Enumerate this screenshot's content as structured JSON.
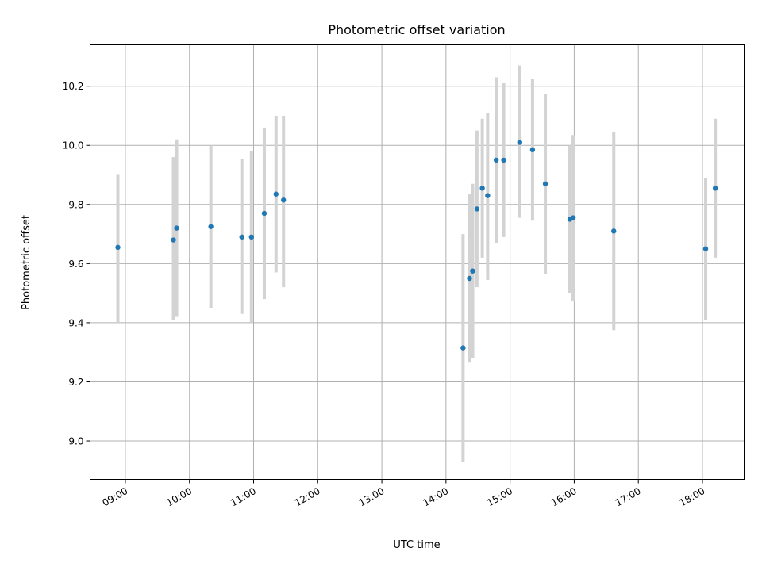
{
  "chart_data": {
    "type": "scatter",
    "title": "Photometric offset variation",
    "xlabel": "UTC time",
    "ylabel": "Photometric offset",
    "xlim": [
      "08:27",
      "18:39"
    ],
    "ylim": [
      8.87,
      10.34
    ],
    "grid": true,
    "x_ticks": [
      "09:00",
      "10:00",
      "11:00",
      "12:00",
      "13:00",
      "14:00",
      "15:00",
      "16:00",
      "17:00",
      "18:00"
    ],
    "y_ticks": [
      "9.0",
      "9.2",
      "9.4",
      "9.6",
      "9.8",
      "10.0",
      "10.2"
    ],
    "colors": {
      "point": "#1f77b4",
      "errorbar": "#d3d3d3"
    },
    "points": [
      {
        "x": "08:53",
        "y": 9.655,
        "ylow": 9.4,
        "yhigh": 9.9
      },
      {
        "x": "09:45",
        "y": 9.68,
        "ylow": 9.41,
        "yhigh": 9.96
      },
      {
        "x": "09:48",
        "y": 9.72,
        "ylow": 9.42,
        "yhigh": 10.02
      },
      {
        "x": "10:20",
        "y": 9.725,
        "ylow": 9.45,
        "yhigh": 10.0
      },
      {
        "x": "10:49",
        "y": 9.69,
        "ylow": 9.43,
        "yhigh": 9.955
      },
      {
        "x": "10:58",
        "y": 9.69,
        "ylow": 9.4,
        "yhigh": 9.98
      },
      {
        "x": "11:10",
        "y": 9.77,
        "ylow": 9.48,
        "yhigh": 10.06
      },
      {
        "x": "11:21",
        "y": 9.835,
        "ylow": 9.57,
        "yhigh": 10.1
      },
      {
        "x": "11:28",
        "y": 9.815,
        "ylow": 9.52,
        "yhigh": 10.1
      },
      {
        "x": "14:16",
        "y": 9.315,
        "ylow": 8.93,
        "yhigh": 9.7
      },
      {
        "x": "14:22",
        "y": 9.55,
        "ylow": 9.265,
        "yhigh": 9.835
      },
      {
        "x": "14:25",
        "y": 9.575,
        "ylow": 9.28,
        "yhigh": 9.87
      },
      {
        "x": "14:29",
        "y": 9.785,
        "ylow": 9.52,
        "yhigh": 10.05
      },
      {
        "x": "14:34",
        "y": 9.855,
        "ylow": 9.62,
        "yhigh": 10.09
      },
      {
        "x": "14:39",
        "y": 9.83,
        "ylow": 9.545,
        "yhigh": 10.11
      },
      {
        "x": "14:47",
        "y": 9.95,
        "ylow": 9.67,
        "yhigh": 10.23
      },
      {
        "x": "14:54",
        "y": 9.95,
        "ylow": 9.69,
        "yhigh": 10.21
      },
      {
        "x": "15:09",
        "y": 10.01,
        "ylow": 9.755,
        "yhigh": 10.27
      },
      {
        "x": "15:21",
        "y": 9.985,
        "ylow": 9.745,
        "yhigh": 10.225
      },
      {
        "x": "15:33",
        "y": 9.87,
        "ylow": 9.565,
        "yhigh": 10.175
      },
      {
        "x": "15:56",
        "y": 9.75,
        "ylow": 9.5,
        "yhigh": 10.0
      },
      {
        "x": "15:59",
        "y": 9.755,
        "ylow": 9.475,
        "yhigh": 10.035
      },
      {
        "x": "16:37",
        "y": 9.71,
        "ylow": 9.375,
        "yhigh": 10.045
      },
      {
        "x": "18:03",
        "y": 9.65,
        "ylow": 9.41,
        "yhigh": 9.89
      },
      {
        "x": "18:12",
        "y": 9.855,
        "ylow": 9.62,
        "yhigh": 10.09
      }
    ]
  }
}
